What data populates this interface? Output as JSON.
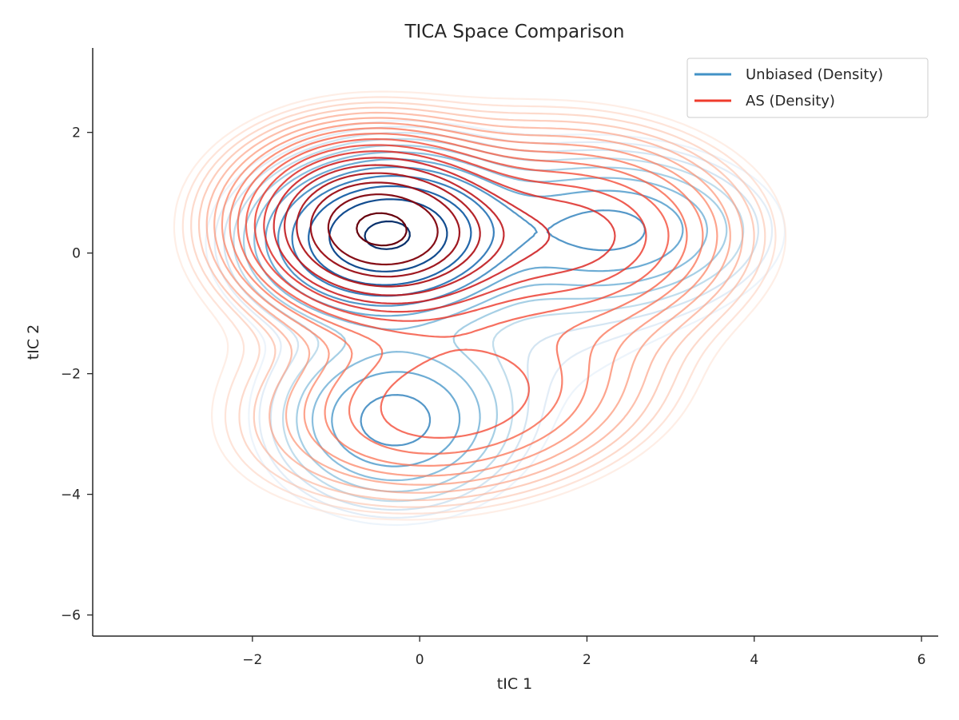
{
  "chart_data": {
    "type": "contour",
    "title": "TICA Space Comparison",
    "xlabel": "tIC 1",
    "ylabel": "tIC 2",
    "xlim": [
      -3.9,
      6.2
    ],
    "ylim": [
      -6.35,
      3.4
    ],
    "xticks": [
      -2,
      0,
      2,
      4,
      6
    ],
    "yticks": [
      -6,
      -4,
      -2,
      0,
      2
    ],
    "grid": false,
    "legend_position": "top-right",
    "series": [
      {
        "name": "Unbiased (Density)",
        "color": "#4292c6",
        "colormap": "Blues",
        "components": [
          {
            "weight": 0.55,
            "mx": -0.4,
            "my": 0.3,
            "sx": 0.75,
            "sy": 0.65,
            "rho": 0.05
          },
          {
            "weight": 0.16,
            "mx": 2.3,
            "my": 0.4,
            "sx": 0.9,
            "sy": 0.65,
            "rho": 0.0
          },
          {
            "weight": 0.17,
            "mx": -0.3,
            "my": -2.8,
            "sx": 0.75,
            "sy": 0.75,
            "rho": 0.0
          },
          {
            "weight": 0.12,
            "mx": 0.8,
            "my": -0.5,
            "sx": 1.6,
            "sy": 1.4,
            "rho": 0.0
          }
        ]
      },
      {
        "name": "AS (Density)",
        "color": "#ef3b2c",
        "colormap": "Reds",
        "components": [
          {
            "weight": 0.5,
            "mx": -0.5,
            "my": 0.4,
            "sx": 0.8,
            "sy": 0.75,
            "rho": -0.05
          },
          {
            "weight": 0.22,
            "mx": 1.8,
            "my": 0.3,
            "sx": 1.1,
            "sy": 0.9,
            "rho": 0.0
          },
          {
            "weight": 0.18,
            "mx": 0.4,
            "my": -2.5,
            "sx": 1.3,
            "sy": 0.9,
            "rho": 0.2
          },
          {
            "weight": 0.1,
            "mx": 0.0,
            "my": 0.0,
            "sx": 2.2,
            "sy": 1.9,
            "rho": 0.0
          }
        ]
      }
    ]
  }
}
